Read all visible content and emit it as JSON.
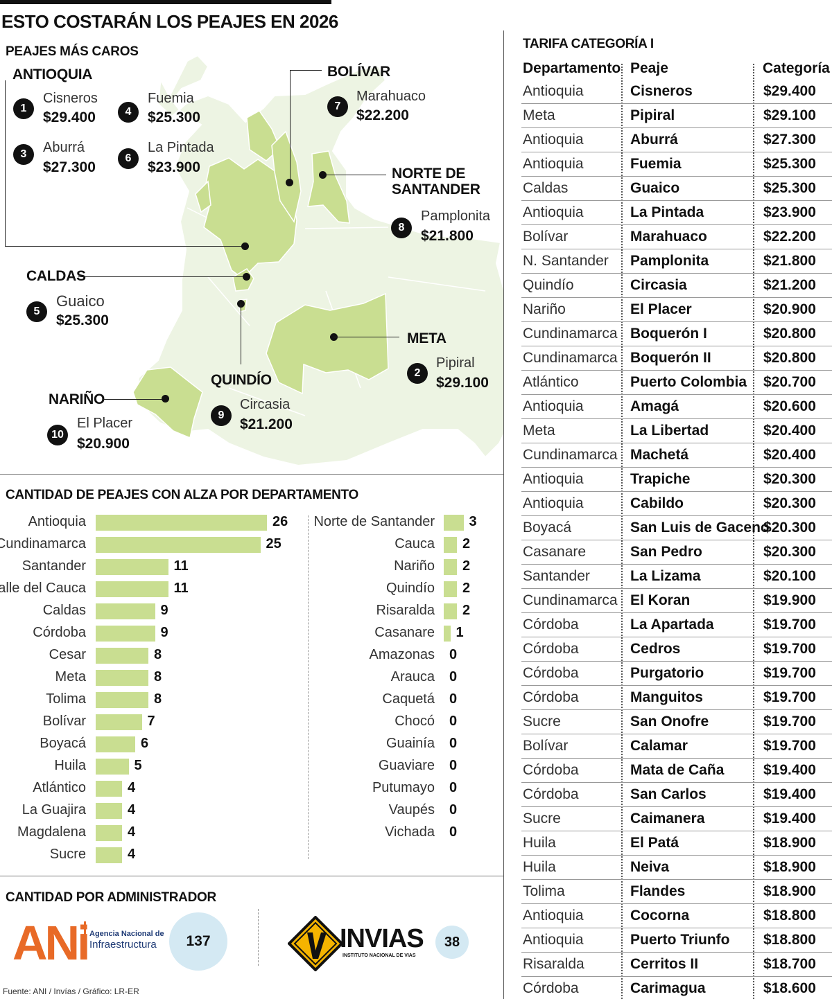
{
  "title": "ESTO COSTARÁN LOS PEAJES EN 2026",
  "map": {
    "heading": "PEAJES MÁS CAROS",
    "colors": {
      "land": "#edf4e3",
      "highlight": "#c9de91",
      "border": "#ffffff"
    },
    "regions": {
      "antioquia": "ANTIOQUIA",
      "bolivar": "BOLÍVAR",
      "norte_santander_1": "NORTE DE",
      "norte_santander_2": "SANTANDER",
      "caldas": "CALDAS",
      "meta": "META",
      "quindio": "QUINDÍO",
      "narino": "NARIÑO"
    },
    "tolls": [
      {
        "rank": "1",
        "name": "Cisneros",
        "price": "$29.400"
      },
      {
        "rank": "4",
        "name": "Fuemia",
        "price": "$25.300"
      },
      {
        "rank": "3",
        "name": "Aburrá",
        "price": "$27.300"
      },
      {
        "rank": "6",
        "name": "La Pintada",
        "price": "$23.900"
      },
      {
        "rank": "7",
        "name": "Marahuaco",
        "price": "$22.200"
      },
      {
        "rank": "8",
        "name": "Pamplonita",
        "price": "$21.800"
      },
      {
        "rank": "5",
        "name": "Guaico",
        "price": "$25.300"
      },
      {
        "rank": "2",
        "name": "Pipiral",
        "price": "$29.100"
      },
      {
        "rank": "9",
        "name": "Circasia",
        "price": "$21.200"
      },
      {
        "rank": "10",
        "name": "El Placer",
        "price": "$20.900"
      }
    ]
  },
  "chart_data": {
    "type": "bar",
    "orientation": "horizontal",
    "title": "CANTIDAD DE PEAJES CON ALZA POR DEPARTAMENTO",
    "bar_color": "#c9de91",
    "xlim": [
      0,
      26
    ],
    "categories": [
      "Antioquia",
      "Cundinamarca",
      "Santander",
      "Valle del Cauca",
      "Caldas",
      "Córdoba",
      "Cesar",
      "Meta",
      "Tolima",
      "Bolívar",
      "Boyacá",
      "Huila",
      "Atlántico",
      "La Guajira",
      "Magdalena",
      "Sucre",
      "Norte de Santander",
      "Cauca",
      "Nariño",
      "Quindío",
      "Risaralda",
      "Casanare",
      "Amazonas",
      "Arauca",
      "Caquetá",
      "Chocó",
      "Guainía",
      "Guaviare",
      "Putumayo",
      "Vaupés",
      "Vichada"
    ],
    "values": [
      26,
      25,
      11,
      11,
      9,
      9,
      8,
      8,
      8,
      7,
      6,
      5,
      4,
      4,
      4,
      4,
      3,
      2,
      2,
      2,
      2,
      1,
      0,
      0,
      0,
      0,
      0,
      0,
      0,
      0,
      0
    ]
  },
  "admin": {
    "title": "CANTIDAD POR ADMINISTRADOR",
    "ani": {
      "logo": "ANi",
      "name_1": "Agencia Nacional de",
      "name_2": "Infraestructura",
      "count": "137"
    },
    "invias": {
      "logo": "INVIAS",
      "subtitle": "INSTITUTO NACIONAL DE VIAS",
      "count": "38"
    }
  },
  "source": "Fuente: ANI / Invías / Gráfico: LR-ER",
  "table": {
    "title": "TARIFA CATEGORÍA I",
    "headers": [
      "Departamento",
      "Peaje",
      "Categoría I"
    ],
    "rows": [
      [
        "Antioquia",
        "Cisneros",
        "$29.400"
      ],
      [
        "Meta",
        "Pipiral",
        "$29.100"
      ],
      [
        "Antioquia",
        "Aburrá",
        "$27.300"
      ],
      [
        "Antioquia",
        "Fuemia",
        "$25.300"
      ],
      [
        "Caldas",
        "Guaico",
        "$25.300"
      ],
      [
        "Antioquia",
        "La Pintada",
        "$23.900"
      ],
      [
        "Bolívar",
        "Marahuaco",
        "$22.200"
      ],
      [
        "N. Santander",
        "Pamplonita",
        "$21.800"
      ],
      [
        "Quindío",
        "Circasia",
        "$21.200"
      ],
      [
        "Nariño",
        "El Placer",
        "$20.900"
      ],
      [
        "Cundinamarca",
        "Boquerón I",
        "$20.800"
      ],
      [
        "Cundinamarca",
        "Boquerón II",
        "$20.800"
      ],
      [
        "Atlántico",
        "Puerto Colombia",
        "$20.700"
      ],
      [
        "Antioquia",
        "Amagá",
        "$20.600"
      ],
      [
        "Meta",
        "La Libertad",
        "$20.400"
      ],
      [
        "Cundinamarca",
        "Machetá",
        "$20.400"
      ],
      [
        "Antioquia",
        "Trapiche",
        "$20.300"
      ],
      [
        "Antioquia",
        "Cabildo",
        "$20.300"
      ],
      [
        "Boyacá",
        "San Luis de Gaceno",
        "$20.300"
      ],
      [
        "Casanare",
        "San Pedro",
        "$20.300"
      ],
      [
        "Santander",
        "La Lizama",
        "$20.100"
      ],
      [
        "Cundinamarca",
        "El Koran",
        "$19.900"
      ],
      [
        "Córdoba",
        "La Apartada",
        "$19.700"
      ],
      [
        "Córdoba",
        "Cedros",
        "$19.700"
      ],
      [
        "Córdoba",
        "Purgatorio",
        "$19.700"
      ],
      [
        "Córdoba",
        "Manguitos",
        "$19.700"
      ],
      [
        "Sucre",
        "San Onofre",
        "$19.700"
      ],
      [
        "Bolívar",
        "Calamar",
        "$19.700"
      ],
      [
        "Córdoba",
        "Mata de Caña",
        "$19.400"
      ],
      [
        "Córdoba",
        "San Carlos",
        "$19.400"
      ],
      [
        "Sucre",
        "Caimanera",
        "$19.400"
      ],
      [
        "Huila",
        "El Patá",
        "$18.900"
      ],
      [
        "Huila",
        "Neiva",
        "$18.900"
      ],
      [
        "Tolima",
        "Flandes",
        "$18.900"
      ],
      [
        "Antioquia",
        "Cocorna",
        "$18.800"
      ],
      [
        "Antioquia",
        "Puerto Triunfo",
        "$18.800"
      ],
      [
        "Risaralda",
        "Cerritos II",
        "$18.700"
      ],
      [
        "Córdoba",
        "Carimagua",
        "$18.600"
      ]
    ]
  }
}
